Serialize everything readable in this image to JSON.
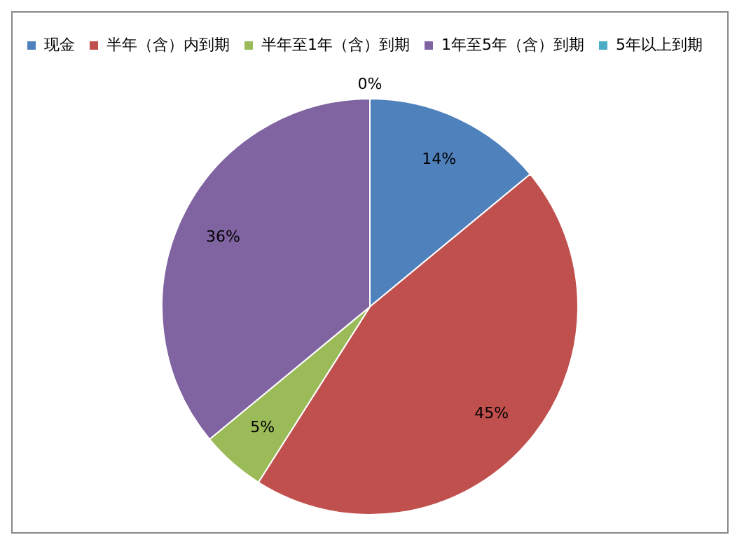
{
  "chart_data": {
    "type": "pie",
    "categories": [
      "现金",
      "半年（含）内到期",
      "半年至1年（含）到期",
      "1年至5年（含）到期",
      "5年以上到期"
    ],
    "values": [
      14,
      45,
      5,
      36,
      0
    ],
    "colors": [
      "#4f81bd",
      "#c0504d",
      "#9bbb59",
      "#8064a2",
      "#4bacc6"
    ],
    "value_labels": [
      "14%",
      "45%",
      "5%",
      "36%",
      "0%"
    ],
    "legend": "top left"
  }
}
